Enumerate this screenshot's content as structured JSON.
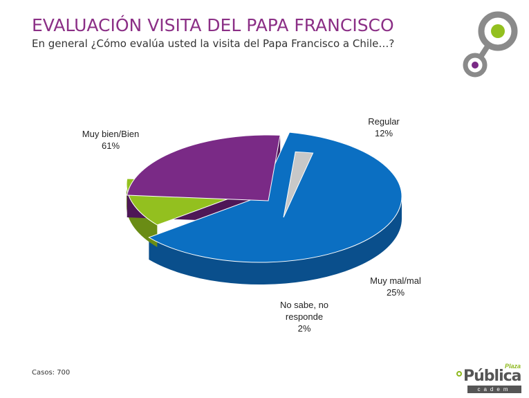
{
  "title": "EVALUACIÓN VISITA DEL PAPA FRANCISCO",
  "subtitle": "En general ¿Cómo evalúa usted la visita del Papa Francisco a Chile…?",
  "footnote": "Casos: 700",
  "brand": {
    "plaza": "Plaza",
    "publica": "Pública",
    "cadem": "cadem"
  },
  "chart_data": {
    "type": "pie",
    "title": "",
    "slices": [
      {
        "label": "Muy bien/Bien",
        "value": 61,
        "value_label": "61%",
        "color": "#0b6fc2",
        "side_color": "#0a4f8c"
      },
      {
        "label": "Regular",
        "value": 12,
        "value_label": "12%",
        "color": "#93c01f",
        "side_color": "#6a8c15"
      },
      {
        "label": "Muy mal/mal",
        "value": 25,
        "value_label": "25%",
        "color": "#7a2a86",
        "side_color": "#4e1757"
      },
      {
        "label": "No sabe, no responde",
        "value": 2,
        "value_label": "2%",
        "color": "#c8c8c8",
        "side_color": "#6e6e6e"
      }
    ]
  }
}
